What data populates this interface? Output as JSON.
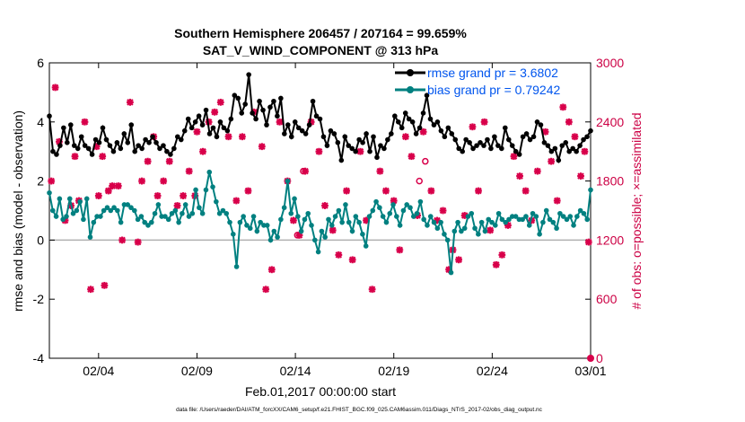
{
  "chart_data": {
    "type": "line",
    "title_line1": "Southern Hemisphere 206457 / 207164 = 99.659%",
    "title_line2": "SAT_V_WIND_COMPONENT @ 313 hPa",
    "xlabel": "Feb.01,2017 00:00:00 start",
    "ylabel": "rmse and bias (model - observation)",
    "ylabel_right": "# of obs: o=possible; ×=assimilated",
    "footnote": "data file: /Users/raeder/DAI/ATM_forcXX/CAM6_setup/f.e21.FHIST_BGC.f09_025.CAM6assim.011/Diags_NTrS_2017-02/obs_diag_output.nc",
    "x_range_days": [
      0.5,
      28.0
    ],
    "ylim": [
      -4,
      6
    ],
    "ylim_right": [
      0,
      3000
    ],
    "yticks": [
      "-4",
      "-2",
      "0",
      "2",
      "4",
      "6"
    ],
    "yticks_values": [
      -4,
      -2,
      0,
      2,
      4,
      6
    ],
    "yticks_right": [
      "0",
      "600",
      "1200",
      "1800",
      "2400",
      "3000"
    ],
    "yticks_right_values": [
      0,
      600,
      1200,
      1800,
      2400,
      3000
    ],
    "xticks": [
      "02/04",
      "02/09",
      "02/14",
      "02/19",
      "02/24",
      "03/01"
    ],
    "xticks_values": [
      3,
      8,
      13,
      18,
      23,
      28
    ],
    "x_step_days": 0.25,
    "series": [
      {
        "name": "rmse",
        "legend": "rmse grand pr = 3.6802",
        "color": "#000000",
        "values": [
          4.2,
          3.0,
          2.9,
          3.2,
          3.8,
          3.3,
          3.9,
          3.2,
          3.1,
          3.5,
          3.2,
          3.1,
          2.9,
          3.4,
          3.3,
          3.8,
          3.4,
          3.2,
          3.0,
          3.3,
          3.1,
          3.6,
          3.3,
          3.9,
          3.0,
          3.2,
          3.1,
          3.4,
          3.3,
          3.5,
          3.3,
          3.1,
          3.2,
          3.0,
          2.9,
          3.1,
          3.5,
          3.4,
          3.7,
          4.1,
          3.8,
          4.0,
          4.2,
          3.9,
          4.4,
          3.6,
          3.8,
          3.5,
          4.0,
          3.8,
          3.7,
          4.1,
          4.9,
          4.8,
          4.3,
          4.6,
          5.6,
          4.3,
          4.1,
          4.7,
          4.4,
          3.9,
          4.5,
          4.7,
          4.2,
          4.8,
          3.6,
          3.9,
          3.5,
          4.0,
          3.8,
          3.7,
          3.6,
          3.9,
          4.7,
          4.2,
          4.1,
          3.5,
          3.2,
          3.7,
          3.6,
          3.3,
          2.7,
          3.5,
          3.2,
          3.1,
          3.0,
          3.4,
          3.3,
          3.6,
          3.0,
          3.5,
          2.8,
          3.2,
          3.1,
          3.4,
          3.6,
          4.2,
          4.0,
          3.8,
          4.3,
          4.1,
          4.0,
          3.6,
          3.8,
          4.3,
          4.9,
          4.1,
          3.9,
          4.0,
          3.7,
          3.5,
          3.8,
          3.6,
          3.4,
          3.1,
          3.0,
          3.4,
          3.3,
          3.1,
          3.2,
          3.3,
          3.2,
          3.4,
          3.1,
          3.5,
          3.2,
          3.1,
          3.8,
          3.4,
          3.2,
          3.0,
          2.9,
          3.5,
          3.6,
          3.4,
          3.5,
          4.0,
          3.9,
          3.3,
          3.2,
          3.0,
          3.1,
          2.7,
          3.2,
          3.3,
          3.0,
          3.1,
          3.0,
          3.2,
          3.4,
          3.5,
          3.7
        ],
        "marker": "dot"
      },
      {
        "name": "bias",
        "legend": "bias grand pr = 0.79242",
        "color": "#008080",
        "values": [
          1.6,
          1.0,
          0.8,
          1.4,
          0.7,
          0.8,
          1.4,
          0.9,
          1.0,
          1.3,
          0.7,
          1.4,
          0.1,
          0.6,
          0.8,
          0.8,
          1.0,
          1.1,
          1.0,
          1.1,
          1.0,
          0.6,
          1.2,
          1.2,
          1.1,
          1.0,
          0.7,
          0.8,
          0.6,
          0.5,
          0.6,
          0.9,
          1.2,
          0.8,
          0.8,
          0.7,
          0.9,
          1.0,
          0.6,
          0.9,
          1.2,
          0.8,
          0.9,
          1.7,
          1.1,
          0.9,
          1.7,
          2.3,
          1.8,
          1.3,
          0.9,
          1.0,
          0.9,
          0.6,
          0.2,
          -0.9,
          0.6,
          0.8,
          0.5,
          0.4,
          0.8,
          0.3,
          0.6,
          0.5,
          0.5,
          0.0,
          0.3,
          0.1,
          0.7,
          1.1,
          2.0,
          0.9,
          1.4,
          0.8,
          0.3,
          0.7,
          0.9,
          0.5,
          0.0,
          -0.4,
          0.3,
          0.1,
          0.7,
          0.5,
          0.8,
          1.0,
          0.6,
          1.2,
          0.6,
          0.3,
          0.8,
          0.6,
          0.2,
          -0.2,
          0.8,
          1.0,
          1.3,
          1.1,
          0.8,
          0.6,
          0.9,
          1.2,
          0.8,
          0.5,
          1.0,
          1.2,
          1.1,
          0.8,
          0.9,
          1.3,
          0.7,
          0.5,
          0.8,
          0.6,
          0.4,
          0.6,
          0.2,
          0.0,
          -1.1,
          0.3,
          0.6,
          0.3,
          0.4,
          0.8,
          0.9,
          0.4,
          0.2,
          0.6,
          0.3,
          0.7,
          0.6,
          0.5,
          0.9,
          0.7,
          0.6,
          0.7,
          0.8,
          0.8,
          0.7,
          0.7,
          0.8,
          0.5,
          0.9,
          0.8,
          0.2,
          0.6,
          1.0,
          0.7,
          0.6,
          0.4,
          0.9,
          0.8,
          0.7,
          0.8,
          0.5,
          0.8,
          1.0,
          0.9,
          0.7,
          1.7
        ],
        "marker": "dot"
      }
    ],
    "obs_assimilated": {
      "marker": "x",
      "color": "#d8004a",
      "axis": "right",
      "points": [
        [
          0.6,
          1800
        ],
        [
          0.8,
          2750
        ],
        [
          1.0,
          2200
        ],
        [
          1.3,
          1400
        ],
        [
          1.6,
          1550
        ],
        [
          1.8,
          2050
        ],
        [
          2.0,
          1600
        ],
        [
          2.3,
          2400
        ],
        [
          2.6,
          700
        ],
        [
          2.9,
          2150
        ],
        [
          3.0,
          1650
        ],
        [
          3.2,
          2050
        ],
        [
          3.3,
          740
        ],
        [
          3.5,
          1700
        ],
        [
          3.7,
          1750
        ],
        [
          4.0,
          1750
        ],
        [
          4.2,
          1200
        ],
        [
          4.6,
          2600
        ],
        [
          5.0,
          1180
        ],
        [
          5.2,
          1800
        ],
        [
          5.5,
          2000
        ],
        [
          5.8,
          2250
        ],
        [
          6.0,
          1650
        ],
        [
          6.3,
          1800
        ],
        [
          6.6,
          2000
        ],
        [
          7.0,
          1550
        ],
        [
          7.3,
          1650
        ],
        [
          7.6,
          1900
        ],
        [
          7.9,
          1650
        ],
        [
          8.0,
          2300
        ],
        [
          8.3,
          2100
        ],
        [
          8.6,
          2400
        ],
        [
          8.9,
          2500
        ],
        [
          9.2,
          2600
        ],
        [
          9.6,
          2250
        ],
        [
          10.0,
          1600
        ],
        [
          10.3,
          2250
        ],
        [
          10.6,
          1700
        ],
        [
          10.9,
          2500
        ],
        [
          11.3,
          2150
        ],
        [
          11.5,
          700
        ],
        [
          11.8,
          900
        ],
        [
          12.2,
          2400
        ],
        [
          12.6,
          1800
        ],
        [
          12.9,
          1400
        ],
        [
          13.2,
          1250
        ],
        [
          13.5,
          1900
        ],
        [
          13.8,
          2400
        ],
        [
          14.2,
          2100
        ],
        [
          14.5,
          1550
        ],
        [
          14.9,
          1300
        ],
        [
          15.2,
          1050
        ],
        [
          15.6,
          1700
        ],
        [
          15.9,
          1000
        ],
        [
          16.3,
          2100
        ],
        [
          16.6,
          1400
        ],
        [
          16.9,
          700
        ],
        [
          17.3,
          1900
        ],
        [
          17.6,
          1700
        ],
        [
          18.0,
          1600
        ],
        [
          18.3,
          1100
        ],
        [
          18.6,
          2250
        ],
        [
          18.9,
          2050
        ],
        [
          19.2,
          1450
        ],
        [
          19.5,
          2300
        ],
        [
          19.9,
          1700
        ],
        [
          20.2,
          1400
        ],
        [
          20.5,
          1500
        ],
        [
          20.8,
          900
        ],
        [
          21.0,
          1100
        ],
        [
          21.3,
          1000
        ],
        [
          21.6,
          1450
        ],
        [
          22.0,
          2350
        ],
        [
          22.3,
          1700
        ],
        [
          22.6,
          2400
        ],
        [
          22.9,
          1300
        ],
        [
          23.2,
          950
        ],
        [
          23.5,
          1050
        ],
        [
          23.8,
          1350
        ],
        [
          24.1,
          2050
        ],
        [
          24.4,
          1850
        ],
        [
          24.7,
          1700
        ],
        [
          25.0,
          1400
        ],
        [
          25.3,
          1900
        ],
        [
          25.7,
          2300
        ],
        [
          26.0,
          2000
        ],
        [
          26.3,
          1600
        ],
        [
          26.6,
          2550
        ],
        [
          26.9,
          2400
        ],
        [
          27.2,
          2250
        ],
        [
          27.5,
          1850
        ],
        [
          27.7,
          2100
        ],
        [
          27.9,
          1180
        ]
      ]
    },
    "obs_possible": {
      "marker": "o",
      "color": "#d8004a",
      "axis": "right",
      "points": [
        [
          13.4,
          1900
        ],
        [
          13.1,
          1250
        ],
        [
          19.3,
          1800
        ],
        [
          19.6,
          2000
        ]
      ]
    },
    "extra_marker": {
      "marker": "dot",
      "x": 28.0,
      "y_right": 0
    }
  }
}
